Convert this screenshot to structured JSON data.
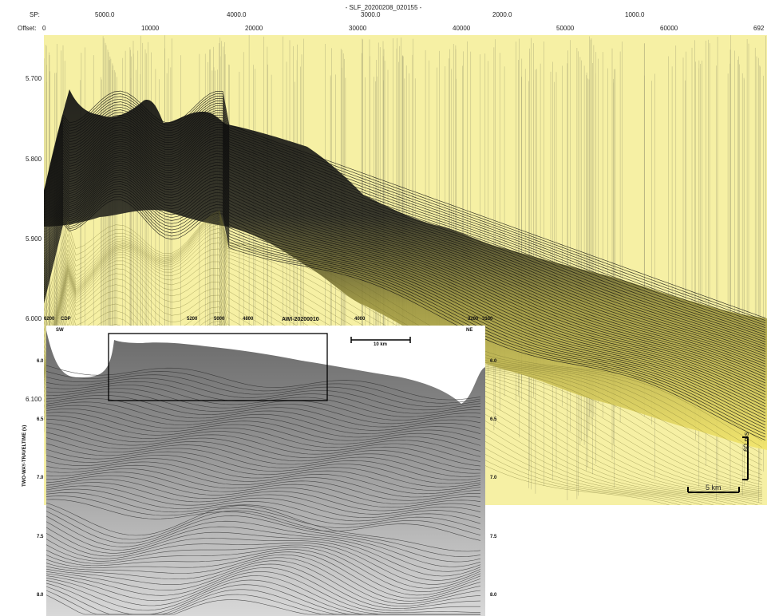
{
  "header": {
    "title": "- SLF_20200208_020155 -",
    "sp_label": "SP:",
    "offset_label": "Offset:",
    "sp_ticks": [
      "5000.0",
      "4000.0",
      "3000.0",
      "2000.0",
      "1000.0"
    ],
    "offset_ticks": [
      "0",
      "10000",
      "20000",
      "30000",
      "40000",
      "50000",
      "60000",
      "692"
    ]
  },
  "upper_panel": {
    "y_ticks": [
      "5.700",
      "5.800",
      "5.900",
      "6.000",
      "6.100"
    ],
    "scale_vertical": "60 ms",
    "scale_horizontal": "5 km",
    "background_color": "#f6f0a4",
    "reflector_color": "#1a1a1a"
  },
  "inset": {
    "title": "AWI-20200010",
    "left_label": "SW",
    "right_label": "NE",
    "top_ticks": [
      "6200",
      "CDP",
      "5200",
      "5000",
      "4800",
      "4000",
      "3200",
      "3100"
    ],
    "scale_bar": "10 km",
    "y_axis_label": "TWO-WAY-TRAVELTIME (s)",
    "left_y_ticks": [
      "6.0",
      "6.5",
      "7.0",
      "7.5",
      "8.0"
    ],
    "right_y_ticks": [
      "6.0",
      "6.5",
      "7.0",
      "7.5",
      "8.0"
    ]
  }
}
